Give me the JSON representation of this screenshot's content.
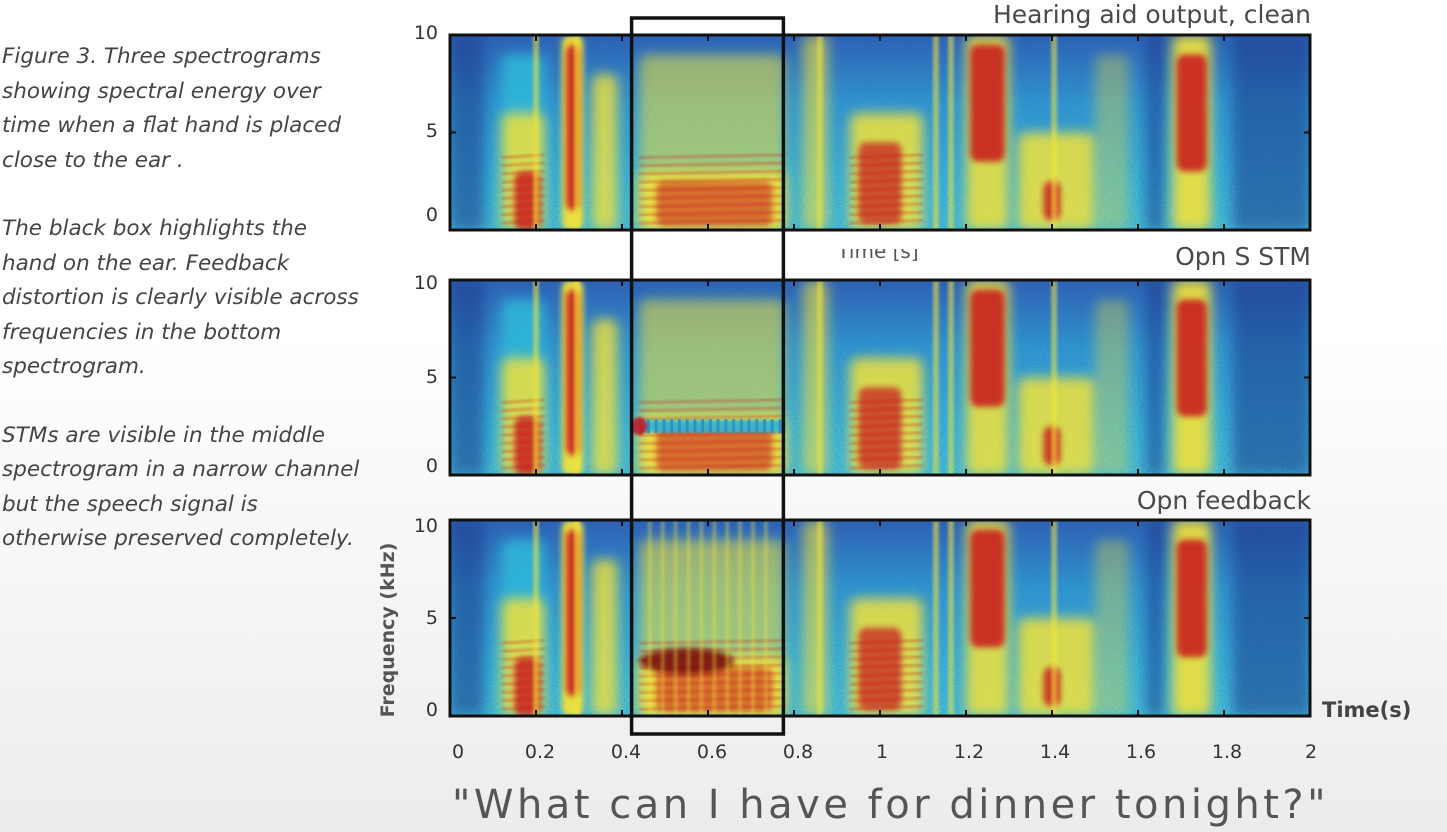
{
  "caption": {
    "p1": "Figure 3. Three spectrograms showing spectral energy over time when a flat hand is placed close to the ear .",
    "p2": "The black box highlights the hand on the ear. Feedback distortion is clearly visible across frequencies in the bottom spectrogram.",
    "p3": "STMs are visible in the middle spectrogram in a narrow channel but  the speech signal is otherwise preserved completely."
  },
  "ghost_label": "Time [s]",
  "quote": "\"What can I have for dinner tonight?\"",
  "chart_data": {
    "type": "heatmap",
    "xlabel": "Time(s)",
    "ylabel": "Frequency (kHz)",
    "xlim": [
      0,
      2
    ],
    "ylim": [
      0,
      10
    ],
    "x_ticks": [
      "0",
      "0.2",
      "0.4",
      "0.6",
      "0.8",
      "1",
      "1.2",
      "1.4",
      "1.6",
      "1.8",
      "2"
    ],
    "y_ticks": [
      "0",
      "5",
      "10"
    ],
    "highlight_box": {
      "x_start": 0.42,
      "x_end": 0.78
    },
    "colors": {
      "low": "#1e3a8c",
      "mid": "#2fb6d8",
      "high": "#f2e23a",
      "peak": "#c8141a"
    },
    "panels": [
      {
        "title": "Hearing aid output, clean",
        "variant": "clean"
      },
      {
        "title": "Opn S STM",
        "variant": "stm",
        "artifact": {
          "x_start": 0.42,
          "x_end": 0.78,
          "freq_khz": 2.5
        }
      },
      {
        "title": "Opn feedback",
        "variant": "feedback",
        "artifact": {
          "x_start": 0.44,
          "x_end": 0.66,
          "freq_khz": 2.8
        }
      }
    ]
  }
}
